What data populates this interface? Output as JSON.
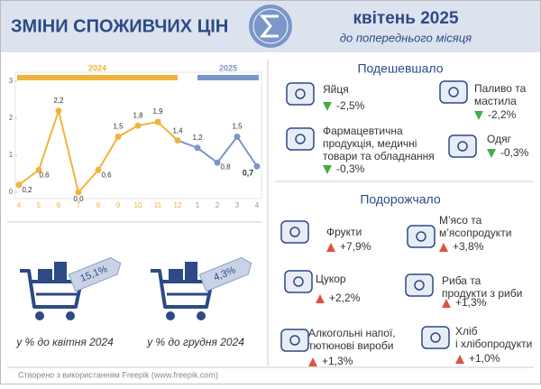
{
  "header": {
    "title": "ЗМІНИ СПОЖИВЧИХ ЦІН",
    "period": "квітень 2025",
    "comparison": "до попереднього місяця"
  },
  "chart_data": {
    "type": "line",
    "categories": [
      "4",
      "5",
      "6",
      "7",
      "8",
      "9",
      "10",
      "11",
      "12",
      "1",
      "2",
      "3",
      "4"
    ],
    "series": [
      {
        "name": "2024",
        "color": "#f0b43c",
        "values": [
          0.2,
          0.6,
          2.2,
          0.0,
          0.6,
          1.5,
          1.8,
          1.9,
          1.4,
          null,
          null,
          null,
          null
        ]
      },
      {
        "name": "2025",
        "color": "#7b96c9",
        "values": [
          null,
          null,
          null,
          null,
          null,
          null,
          null,
          null,
          null,
          1.2,
          0.8,
          1.5,
          0.7
        ]
      }
    ],
    "value_labels": [
      "0,2",
      "0,6",
      "2,2",
      "0,0",
      "0,6",
      "1,5",
      "1,8",
      "1,9",
      "1,4",
      "1,2",
      "0,8",
      "1,5",
      "0,7"
    ],
    "ylim": [
      0,
      3
    ],
    "yticks": [
      0,
      1,
      2,
      3
    ],
    "grid": false
  },
  "cumulative": [
    {
      "value_label": "15,1%",
      "caption": "у % до квітня 2024"
    },
    {
      "value_label": "4,3%",
      "caption": "у % до грудня 2024"
    }
  ],
  "cheaper": {
    "heading": "Подешевшало",
    "color": "#3fae49",
    "items": [
      {
        "label": [
          "Яйця"
        ],
        "change": "-2,5%"
      },
      {
        "label": [
          "Паливо та",
          "мастила"
        ],
        "change": "-2,2%"
      },
      {
        "label": [
          "Фармацевтична",
          "продукція, медичні",
          "товари та обладнання"
        ],
        "change": "-0,3%"
      },
      {
        "label": [
          "Одяг"
        ],
        "change": "-0,3%"
      }
    ]
  },
  "pricier": {
    "heading": "Подорожчало",
    "color": "#e0533f",
    "items": [
      {
        "label": [
          "Фрукти"
        ],
        "change": "+7,9%"
      },
      {
        "label": [
          "М’ясо та",
          "м’ясопродукти"
        ],
        "change": "+3,8%"
      },
      {
        "label": [
          "Цукор"
        ],
        "change": "+2,2%"
      },
      {
        "label": [
          "Риба та",
          "продукти з риби"
        ],
        "change": "+1,3%"
      },
      {
        "label": [
          "Алкогольні напої,",
          "тютюнові вироби"
        ],
        "change": "+1,3%"
      },
      {
        "label": [
          "Хліб",
          "і хлібопродукти"
        ],
        "change": "+1,0%"
      }
    ]
  },
  "footer": "Створено з використанням Freepik (www.freepik.com)"
}
